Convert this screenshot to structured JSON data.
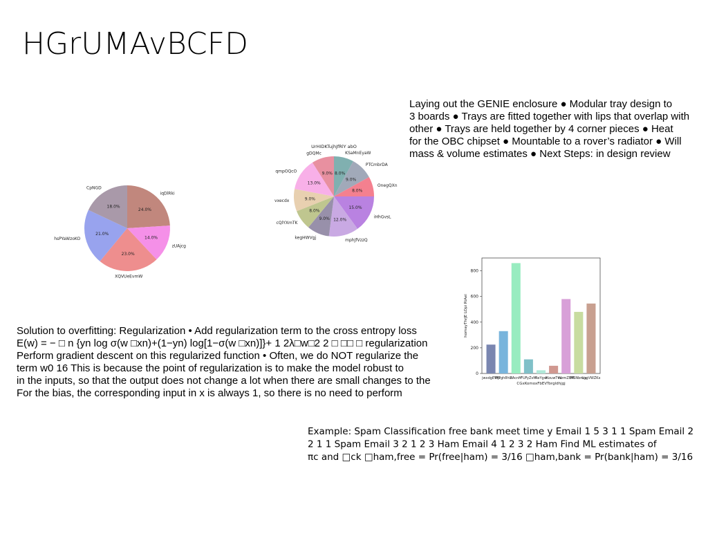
{
  "title": "HGrUMAvBCFD",
  "notes": {
    "right": [
      "Laying out the GENIE enclosure ● Modular tray design to",
      "3 boards ● Trays are fitted together with lips that overlap with",
      "other ● Trays are held together by 4 corner pieces ● Heat",
      "for the OBC chipset ● Mountable to a rover’s radiator ● Will",
      "mass & volume estimates ● Next Steps: in design review"
    ],
    "left": [
      "Solution to overfitting: Regularization • Add regularization term to the cross entropy loss",
      "E(w) = − □ n {yn log σ(w □xn)+(1−yn) log[1−σ(w □xn)]}+ 1 2λ□w□2 2 □ □□ □ regularization",
      "Perform gradient descent on this regularized function • Often, we do NOT regularize the",
      "term w0 16 This is because the point of regularization is to make the model robust to",
      "in the inputs, so that the output does not change a lot when there are small changes to the",
      "For the bias, the corresponding input in x is always 1, so there is no need to perform"
    ],
    "example": [
      "Example: Spam Classification free bank meet time y Email 1 5 3 1 1 Spam Email 2",
      "2 1 1 Spam Email 3 2 1 2 3 Ham Email 4 1 2 3 2 Ham Find ML estimates of",
      "πc and □ck □ham,free = Pr(free|ham) = 3/16 □ham,bank = Pr(bank|ham) = 3/16"
    ]
  },
  "chart_data": [
    {
      "type": "pie",
      "categories": [
        "iqDlRki",
        "zUAjcg",
        "XQVUeEvmW",
        "hsPYaWzoKO",
        "CpNGD"
      ],
      "values": [
        24,
        14,
        23,
        21,
        18
      ],
      "value_labels": [
        "24.0%",
        "14.0%",
        "23.0%",
        "21.0%",
        "18.0%"
      ],
      "colors": [
        "#c1877d",
        "#f590e8",
        "#ee8e8e",
        "#98a3ee",
        "#a999a9"
      ]
    },
    {
      "type": "pie",
      "title": "UrHIDKTujhJfRlY abO",
      "categories": [
        "KSaMnEyaW",
        "PTCmbrDA",
        "OnegQXn",
        "iHhGvsL",
        "mphJfVzzQ",
        "kegHWVgj",
        "cQlYXmTK",
        "vxecdx",
        "qmpOQcO",
        "gDQMc"
      ],
      "values": [
        8,
        9,
        8,
        15,
        12,
        9,
        8,
        9,
        13,
        9
      ],
      "value_labels": [
        "8.0%",
        "9.0%",
        "8.0%",
        "15.0%",
        "12.0%",
        "9.0%",
        "8.0%",
        "9.0%",
        "13.0%",
        "9.0%"
      ],
      "colors": [
        "#80b0b0",
        "#a1a9b9",
        "#f4808f",
        "#b982e1",
        "#c9a9e3",
        "#9890aa",
        "#bfc68f",
        "#e8d0b0",
        "#f8b0e8",
        "#e890a0"
      ]
    },
    {
      "type": "bar",
      "x_label": "CGxKomoxFbEVTorgldhjgj",
      "y_label": "homayThrJE LOpi RiAei",
      "categories": [
        "jwxdgEWjI",
        "PWgh8hU",
        "IlAcnM",
        "FUFyZvM",
        "ReYgw",
        "IKouwTvu",
        "WzmZBM",
        "MSNbmiu",
        "LggVWZKx"
      ],
      "values": [
        225,
        330,
        860,
        110,
        25,
        60,
        580,
        480,
        545
      ],
      "colors": [
        "#7a86b0",
        "#78b4dc",
        "#98ecc0",
        "#80c0c8",
        "#b0e8d8",
        "#d09890",
        "#d8a0d8",
        "#c8dca0",
        "#c8a090"
      ],
      "ylim": [
        0,
        900
      ],
      "yticks": [
        0,
        200,
        400,
        600,
        800
      ]
    }
  ]
}
